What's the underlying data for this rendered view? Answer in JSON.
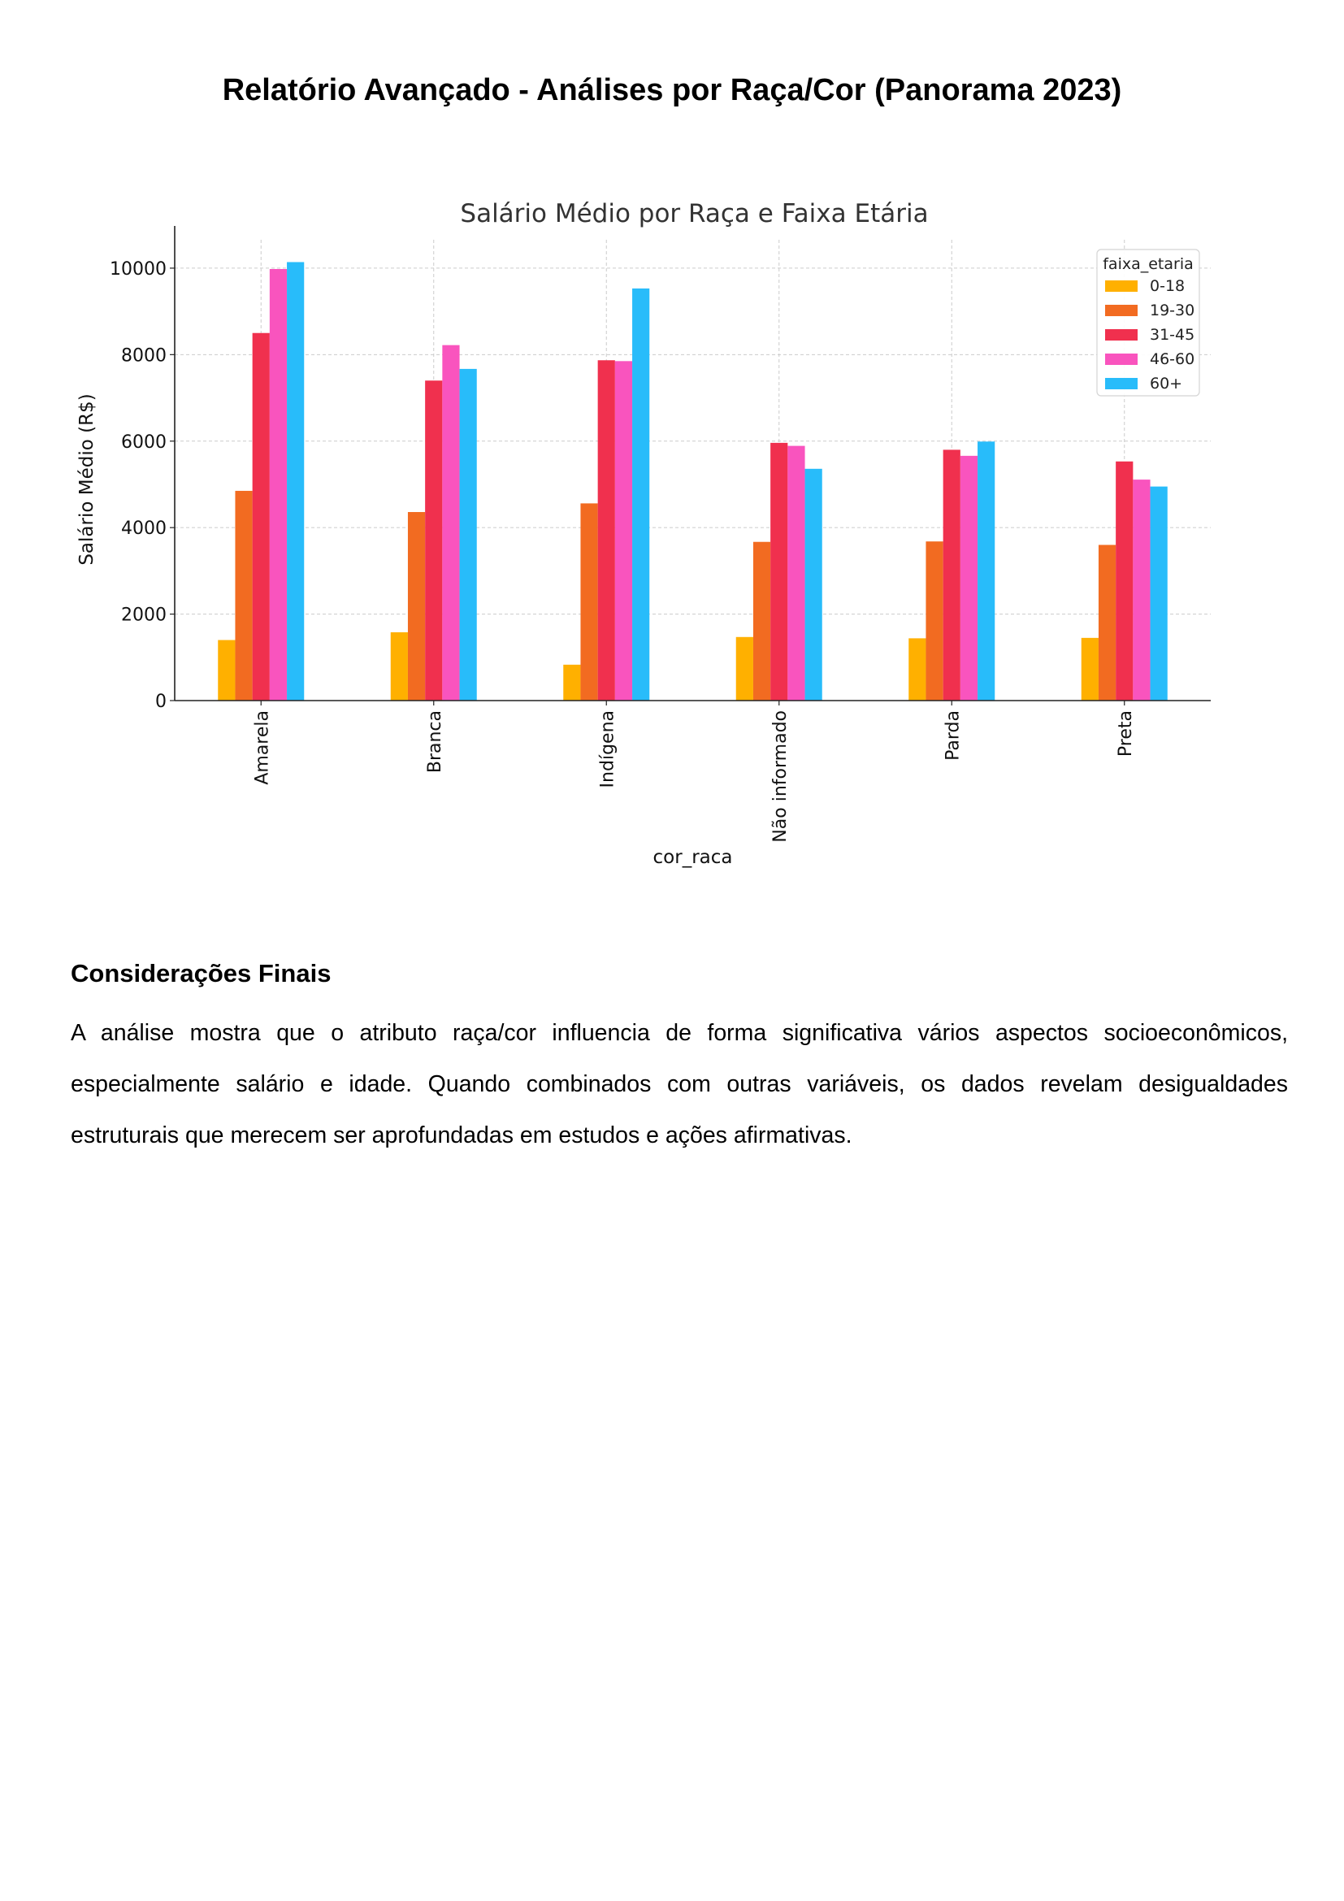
{
  "document": {
    "title": "Relatório Avançado - Análises por Raça/Cor (Panorama 2023)",
    "sections": [
      {
        "heading": "Considerações Finais",
        "body": "A análise mostra que o atributo raça/cor influencia de forma significativa vários aspectos socioeconômicos, especialmente salário e idade. Quando combinados com outras variáveis, os dados revelam desigualdades estruturais que merecem ser aprofundadas em estudos e ações afirmativas."
      }
    ]
  },
  "chart_data": {
    "type": "bar",
    "title": "Salário Médio por Raça e Faixa Etária",
    "xlabel": "cor_raca",
    "ylabel": "Salário Médio (R$)",
    "ylim": [
      0,
      10600
    ],
    "yticks": [
      0,
      2000,
      4000,
      6000,
      8000,
      10000
    ],
    "grid": true,
    "legend_title": "faixa_etaria",
    "legend_position": "top-right",
    "categories": [
      "Amarela",
      "Branca",
      "Indígena",
      "Não informado",
      "Parda",
      "Preta"
    ],
    "series": [
      {
        "name": "0-18",
        "color": "#FFB000",
        "values": [
          1400,
          1580,
          830,
          1470,
          1440,
          1450
        ]
      },
      {
        "name": "19-30",
        "color": "#F26B21",
        "values": [
          4850,
          4360,
          4560,
          3670,
          3680,
          3600
        ]
      },
      {
        "name": "31-45",
        "color": "#F0304E",
        "values": [
          8500,
          7400,
          7870,
          5960,
          5800,
          5530
        ]
      },
      {
        "name": "46-60",
        "color": "#F954BE",
        "values": [
          9980,
          8220,
          7850,
          5890,
          5660,
          5110
        ]
      },
      {
        "name": "60+",
        "color": "#28BCFA",
        "values": [
          10140,
          7670,
          9530,
          5360,
          5990,
          4950
        ]
      }
    ]
  }
}
